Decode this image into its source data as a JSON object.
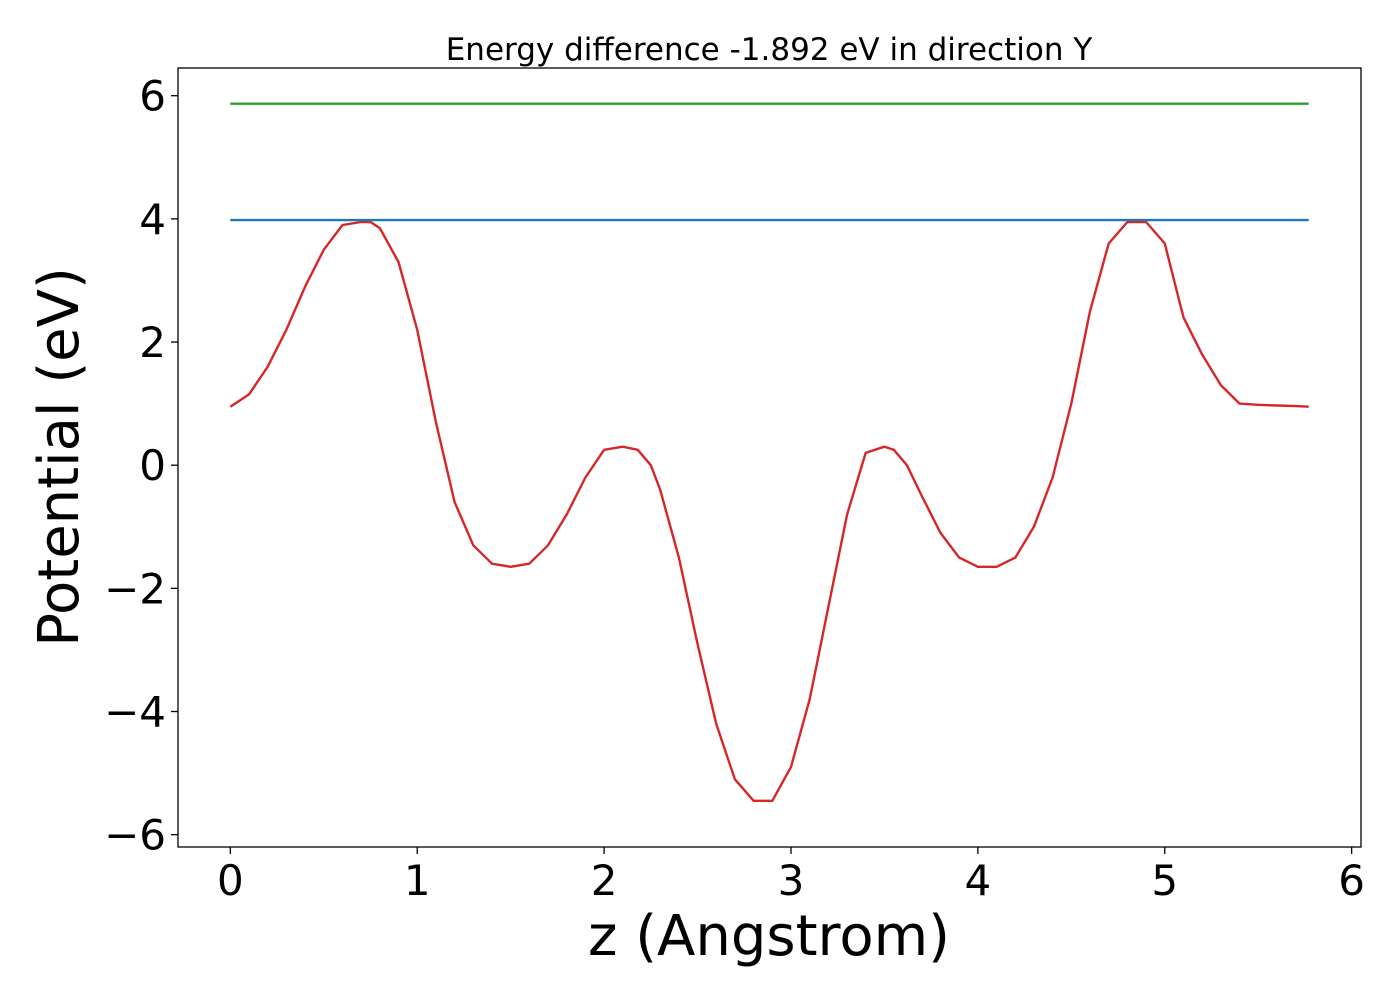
{
  "chart_data": {
    "type": "line",
    "title": "Energy difference -1.892 eV in direction Y",
    "xlabel": "z (Angstrom)",
    "ylabel": "Potential (eV)",
    "xlim": [
      -0.28,
      6.05
    ],
    "ylim": [
      -6.2,
      6.45
    ],
    "xticks": [
      0,
      1,
      2,
      3,
      4,
      5,
      6
    ],
    "xtick_labels": [
      "0",
      "1",
      "2",
      "3",
      "4",
      "5",
      "6"
    ],
    "yticks": [
      -6,
      -4,
      -2,
      0,
      2,
      4,
      6
    ],
    "ytick_labels": [
      "−6",
      "−4",
      "−2",
      "0",
      "2",
      "4",
      "6"
    ],
    "grid": false,
    "series": [
      {
        "color": "#d62728",
        "x": [
          0.0,
          0.1,
          0.2,
          0.3,
          0.4,
          0.5,
          0.6,
          0.7,
          0.75,
          0.8,
          0.9,
          1.0,
          1.1,
          1.2,
          1.3,
          1.4,
          1.5,
          1.6,
          1.7,
          1.8,
          1.9,
          2.0,
          2.1,
          2.18,
          2.25,
          2.3,
          2.4,
          2.5,
          2.6,
          2.7,
          2.8,
          2.9,
          3.0,
          3.1,
          3.2,
          3.3,
          3.4,
          3.5,
          3.55,
          3.62,
          3.7,
          3.8,
          3.9,
          4.0,
          4.1,
          4.2,
          4.3,
          4.4,
          4.5,
          4.6,
          4.7,
          4.8,
          4.9,
          5.0,
          5.05,
          5.1,
          5.2,
          5.3,
          5.4,
          5.5,
          5.6,
          5.7,
          5.77
        ],
        "y": [
          0.95,
          1.15,
          1.6,
          2.2,
          2.9,
          3.5,
          3.9,
          3.95,
          3.95,
          3.85,
          3.3,
          2.2,
          0.7,
          -0.6,
          -1.3,
          -1.6,
          -1.65,
          -1.6,
          -1.3,
          -0.8,
          -0.2,
          0.25,
          0.3,
          0.25,
          0.0,
          -0.4,
          -1.5,
          -2.9,
          -4.2,
          -5.1,
          -5.45,
          -5.45,
          -4.9,
          -3.8,
          -2.3,
          -0.8,
          0.2,
          0.3,
          0.25,
          0.0,
          -0.5,
          -1.1,
          -1.5,
          -1.65,
          -1.65,
          -1.5,
          -1.0,
          -0.2,
          1.0,
          2.5,
          3.6,
          3.95,
          3.95,
          3.6,
          3.0,
          2.4,
          1.8,
          1.3,
          1.0,
          0.98,
          0.97,
          0.96,
          0.95
        ]
      },
      {
        "color": "#1f77b4",
        "x": [
          0.0,
          5.77
        ],
        "y": [
          3.98,
          3.98
        ]
      },
      {
        "color": "#2ca02c",
        "x": [
          0.0,
          5.77
        ],
        "y": [
          5.87,
          5.87
        ]
      }
    ]
  }
}
